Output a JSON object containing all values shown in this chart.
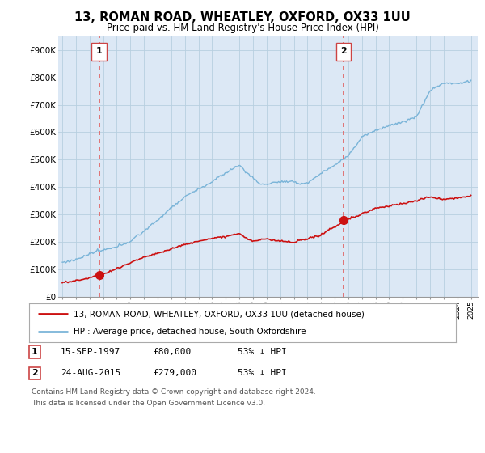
{
  "title": "13, ROMAN ROAD, WHEATLEY, OXFORD, OX33 1UU",
  "subtitle": "Price paid vs. HM Land Registry's House Price Index (HPI)",
  "title_fontsize": 10.5,
  "subtitle_fontsize": 8.5,
  "ylim": [
    0,
    950000
  ],
  "yticks": [
    0,
    100000,
    200000,
    300000,
    400000,
    500000,
    600000,
    700000,
    800000,
    900000
  ],
  "ytick_labels": [
    "£0",
    "£100K",
    "£200K",
    "£300K",
    "£400K",
    "£500K",
    "£600K",
    "£700K",
    "£800K",
    "£900K"
  ],
  "hpi_color": "#7ab4d8",
  "price_color": "#cc1111",
  "sale1_x": 1997.71,
  "sale1_y": 80000,
  "sale2_x": 2015.65,
  "sale2_y": 279000,
  "vline_color": "#e06060",
  "background_color": "#ffffff",
  "plot_bg_color": "#dce8f5",
  "grid_color": "#b8cfe0",
  "legend_label_price": "13, ROMAN ROAD, WHEATLEY, OXFORD, OX33 1UU (detached house)",
  "legend_label_hpi": "HPI: Average price, detached house, South Oxfordshire",
  "footnote3": "Contains HM Land Registry data © Crown copyright and database right 2024.",
  "footnote4": "This data is licensed under the Open Government Licence v3.0.",
  "xlim_start": 1994.7,
  "xlim_end": 2025.5,
  "xticks": [
    1995,
    1996,
    1997,
    1998,
    1999,
    2000,
    2001,
    2002,
    2003,
    2004,
    2005,
    2006,
    2007,
    2008,
    2009,
    2010,
    2011,
    2012,
    2013,
    2014,
    2015,
    2016,
    2017,
    2018,
    2019,
    2020,
    2021,
    2022,
    2023,
    2024,
    2025
  ]
}
